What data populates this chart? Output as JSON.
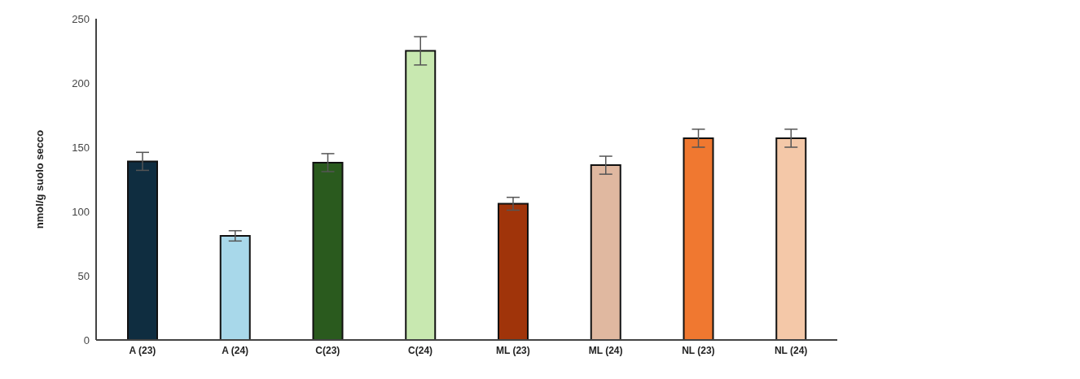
{
  "chart_data": {
    "type": "bar",
    "ylabel": "nmol/g suolo secco",
    "categories": [
      "A (23)",
      "A (24)",
      "C(23)",
      "C(24)",
      "ML (23)",
      "ML (24)",
      "NL (23)",
      "NL (24)"
    ],
    "values": [
      139,
      81,
      138,
      225,
      106,
      136,
      157,
      157
    ],
    "errors": [
      7,
      4,
      7,
      11,
      5,
      7,
      7,
      7
    ],
    "colors": [
      "#0f2d40",
      "#a8d8ea",
      "#2a5a1e",
      "#c8e8b0",
      "#a0340a",
      "#e0b8a0",
      "#f07830",
      "#f4c8a8"
    ],
    "ylim": [
      0,
      250
    ],
    "yticks": [
      0,
      50,
      100,
      150,
      200,
      250
    ],
    "grid": false,
    "legend": false
  }
}
